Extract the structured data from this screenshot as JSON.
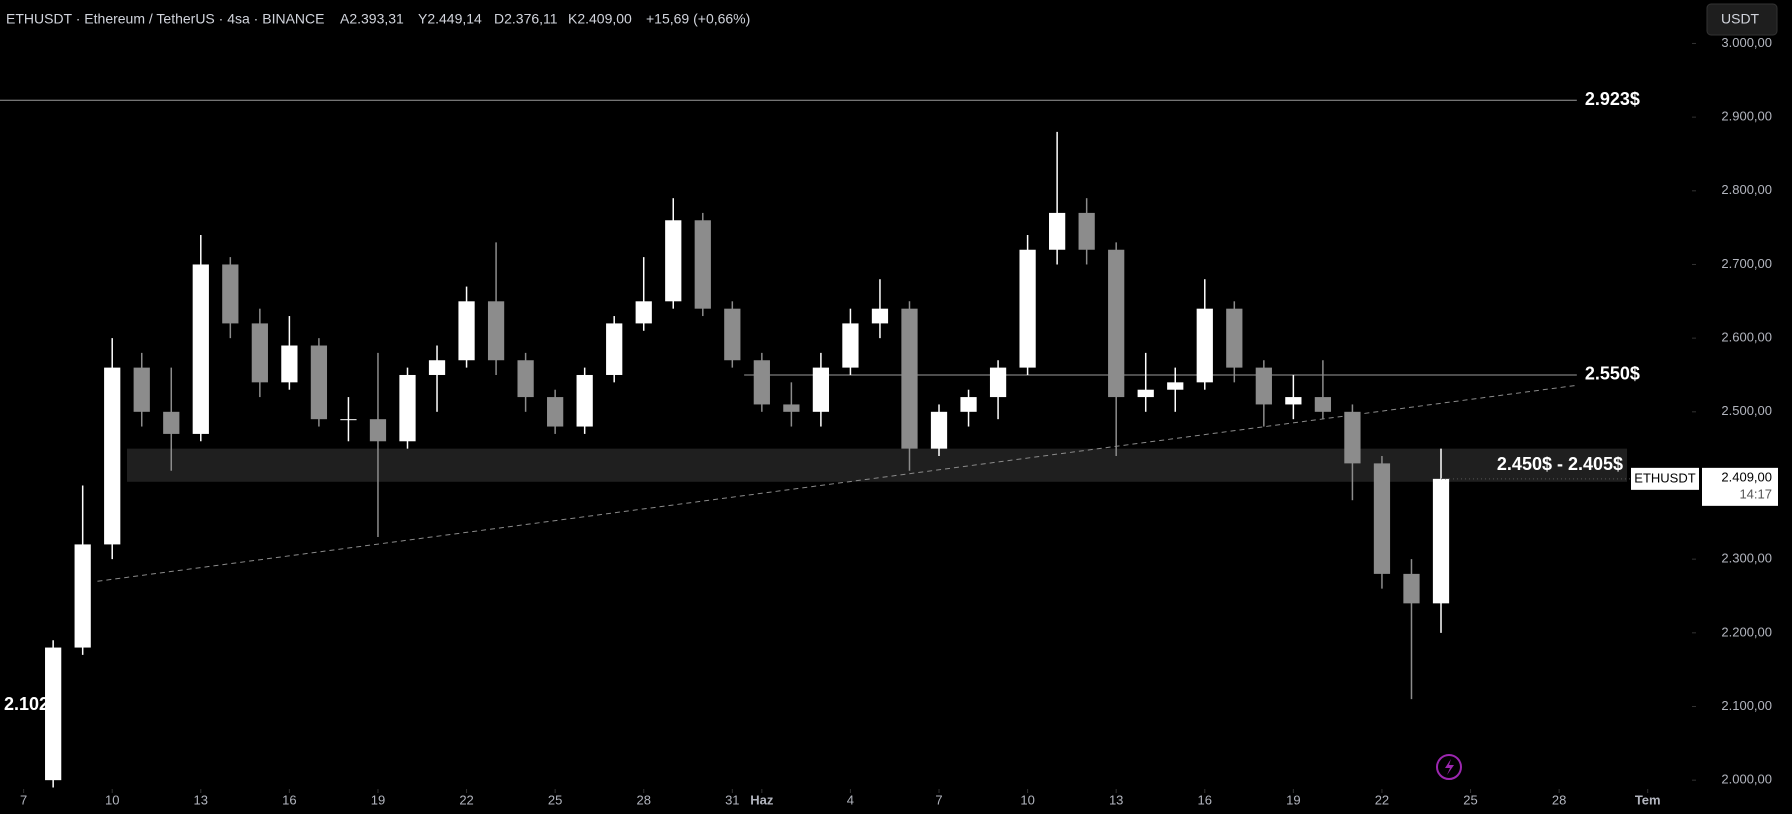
{
  "header": {
    "symbol": "ETHUSDT · Ethereum / TetherUS · 4sa · BINANCE",
    "open": "A2.393,31",
    "high": "Y2.449,14",
    "low": "D2.376,11",
    "close": "K2.409,00",
    "change": "+15,69 (+0,66%)",
    "currency_button": "USDT"
  },
  "chart_data": {
    "type": "candlestick",
    "x": [
      8,
      9,
      10,
      11,
      12,
      13,
      14,
      15,
      16,
      17,
      18,
      19,
      20,
      21,
      22,
      23,
      24,
      25,
      26,
      27,
      28,
      29,
      30,
      31,
      32,
      33,
      34,
      35,
      36,
      37,
      38,
      39,
      40,
      41,
      42,
      43,
      44,
      45,
      46,
      47,
      48,
      49,
      50,
      51,
      52,
      53,
      54,
      55
    ],
    "open": [
      2000,
      2180,
      2320,
      2560,
      2500,
      2470,
      2700,
      2620,
      2540,
      2590,
      2490,
      2490,
      2460,
      2550,
      2570,
      2650,
      2570,
      2520,
      2480,
      2550,
      2620,
      2650,
      2760,
      2640,
      2570,
      2510,
      2500,
      2560,
      2620,
      2640,
      2450,
      2500,
      2520,
      2560,
      2720,
      2770,
      2720,
      2520,
      2530,
      2540,
      2640,
      2560,
      2510,
      2520,
      2500,
      2430,
      2280,
      2240
    ],
    "high": [
      2190,
      2400,
      2600,
      2580,
      2560,
      2740,
      2710,
      2640,
      2630,
      2600,
      2520,
      2580,
      2560,
      2590,
      2670,
      2730,
      2580,
      2530,
      2560,
      2630,
      2710,
      2790,
      2770,
      2650,
      2580,
      2540,
      2580,
      2640,
      2680,
      2650,
      2510,
      2530,
      2570,
      2740,
      2880,
      2790,
      2730,
      2580,
      2560,
      2680,
      2650,
      2570,
      2550,
      2570,
      2510,
      2440,
      2300,
      2450
    ],
    "low": [
      1990,
      2170,
      2300,
      2480,
      2420,
      2460,
      2600,
      2520,
      2530,
      2480,
      2460,
      2330,
      2450,
      2500,
      2560,
      2550,
      2500,
      2470,
      2470,
      2540,
      2610,
      2640,
      2630,
      2560,
      2500,
      2480,
      2480,
      2550,
      2600,
      2420,
      2440,
      2480,
      2490,
      2550,
      2700,
      2700,
      2440,
      2500,
      2500,
      2530,
      2540,
      2480,
      2490,
      2490,
      2380,
      2260,
      2110,
      2200
    ],
    "close": [
      2180,
      2320,
      2560,
      2500,
      2470,
      2700,
      2620,
      2540,
      2590,
      2490,
      2490,
      2460,
      2550,
      2570,
      2650,
      2570,
      2520,
      2480,
      2550,
      2620,
      2650,
      2760,
      2640,
      2570,
      2510,
      2500,
      2560,
      2620,
      2640,
      2450,
      2500,
      2520,
      2560,
      2720,
      2770,
      2720,
      2520,
      2530,
      2540,
      2640,
      2560,
      2510,
      2520,
      2500,
      2430,
      2280,
      2240,
      2409
    ],
    "up_color": "#ffffff",
    "down_color": "#8c8c8c",
    "xlim": [
      6.2,
      63.5
    ],
    "ylim": [
      1988,
      3059
    ],
    "xticks": [
      7,
      10,
      13,
      16,
      19,
      22,
      25,
      28,
      31,
      {
        "value": 32,
        "label": "Haz"
      },
      {
        "value": 35,
        "label": "4"
      },
      {
        "value": 38,
        "label": "7"
      },
      {
        "value": 41,
        "label": "10"
      },
      {
        "value": 44,
        "label": "13"
      },
      {
        "value": 47,
        "label": "16"
      },
      {
        "value": 50,
        "label": "19"
      },
      {
        "value": 53,
        "label": "22"
      },
      {
        "value": 56,
        "label": "25"
      },
      {
        "value": 59,
        "label": "28"
      },
      {
        "value": 62,
        "label": "Tem"
      }
    ],
    "yticks": [
      {
        "value": 2000,
        "label": "2.000,00"
      },
      {
        "value": 2100,
        "label": "2.100,00"
      },
      {
        "value": 2200,
        "label": "2.200,00"
      },
      {
        "value": 2300,
        "label": "2.300,00"
      },
      {
        "value": 2400,
        "label": "2.400,00"
      },
      {
        "value": 2500,
        "label": "2.500,00"
      },
      {
        "value": 2600,
        "label": "2.600,00"
      },
      {
        "value": 2700,
        "label": "2.700,00"
      },
      {
        "value": 2800,
        "label": "2.800,00"
      },
      {
        "value": 2900,
        "label": "2.900,00"
      },
      {
        "value": 3000,
        "label": "3.000,00"
      }
    ],
    "levels": [
      {
        "value": 2923,
        "label": "2.923$",
        "x": [
          6.2,
          59.6
        ]
      },
      {
        "value": 2550,
        "label": "2.550$",
        "x": [
          31.4,
          59.6
        ]
      }
    ],
    "zone": {
      "high": 2450,
      "low": 2405,
      "label": "2.450$ - 2.405$",
      "x": [
        10.5,
        61.3
      ]
    },
    "point_label": {
      "value": 2102,
      "label": "2.102$"
    },
    "trendline": {
      "x": [
        9.5,
        59.6
      ],
      "y": [
        2270,
        2536
      ]
    },
    "last_price": {
      "value": 2409,
      "label": "2.409,00",
      "symbol": "ETHUSDT",
      "countdown": "14:17"
    }
  }
}
